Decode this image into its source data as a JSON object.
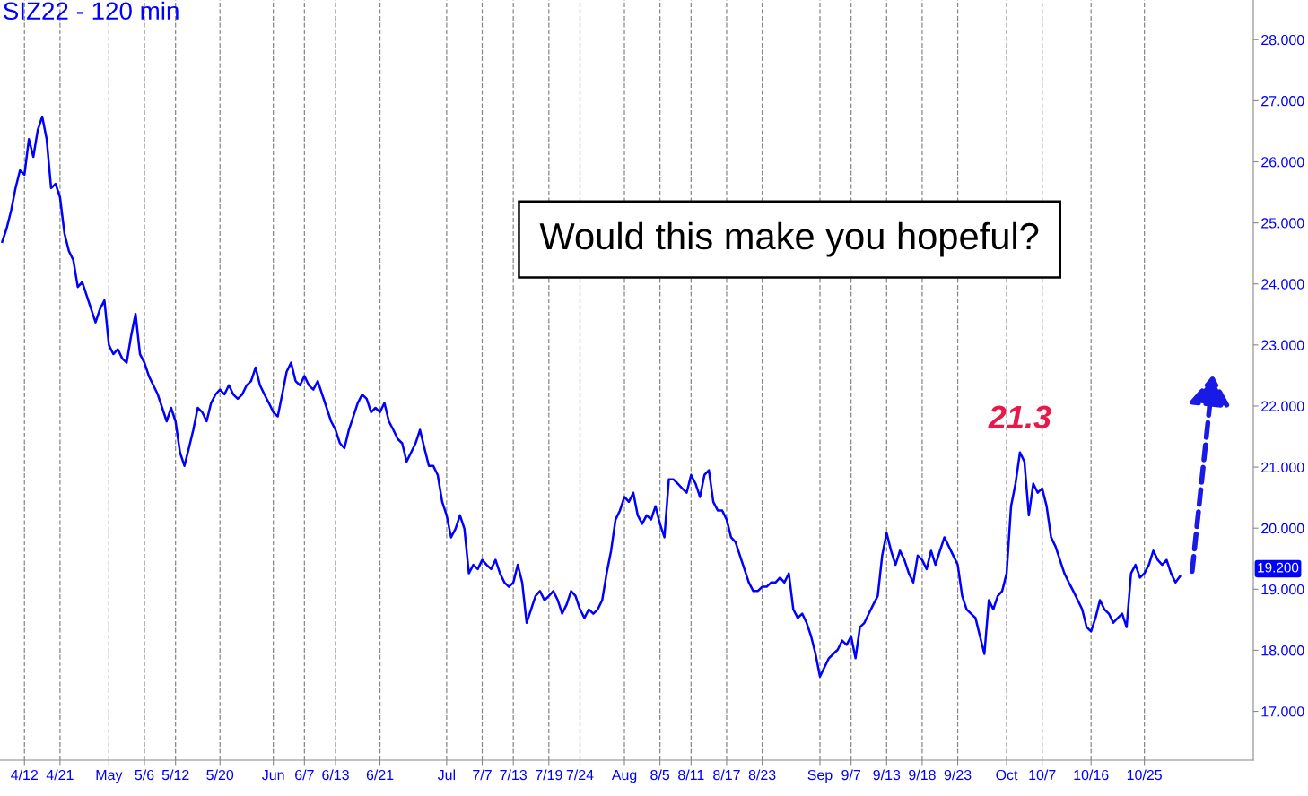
{
  "chart_data": {
    "type": "line",
    "title": "SIZ22 - 120 min",
    "categories": [
      null,
      null,
      null,
      null,
      null,
      "4/12",
      null,
      null,
      null,
      null,
      null,
      null,
      null,
      "4/21",
      null,
      null,
      null,
      null,
      null,
      null,
      null,
      null,
      null,
      null,
      "May",
      null,
      null,
      null,
      null,
      null,
      null,
      null,
      "5/6",
      null,
      null,
      null,
      null,
      null,
      null,
      "5/12",
      null,
      null,
      null,
      null,
      null,
      null,
      null,
      null,
      null,
      "5/20",
      null,
      null,
      null,
      null,
      null,
      null,
      null,
      null,
      null,
      null,
      null,
      "Jun",
      null,
      null,
      null,
      null,
      null,
      null,
      "6/7",
      null,
      null,
      null,
      null,
      null,
      null,
      "6/13",
      null,
      null,
      null,
      null,
      null,
      null,
      null,
      null,
      null,
      "6/21",
      null,
      null,
      null,
      null,
      null,
      null,
      null,
      null,
      null,
      null,
      null,
      null,
      null,
      null,
      "Jul",
      null,
      null,
      null,
      null,
      null,
      null,
      null,
      "7/7",
      null,
      null,
      null,
      null,
      null,
      null,
      "7/13",
      null,
      null,
      null,
      null,
      null,
      null,
      null,
      "7/19",
      null,
      null,
      null,
      null,
      null,
      null,
      "7/24",
      null,
      null,
      null,
      null,
      null,
      null,
      null,
      null,
      null,
      "Aug",
      null,
      null,
      null,
      null,
      null,
      null,
      null,
      "8/5",
      null,
      null,
      null,
      null,
      null,
      null,
      "8/11",
      null,
      null,
      null,
      null,
      null,
      null,
      null,
      "8/17",
      null,
      null,
      null,
      null,
      null,
      null,
      null,
      "8/23",
      null,
      null,
      null,
      null,
      null,
      null,
      null,
      null,
      null,
      null,
      null,
      null,
      "Sep",
      null,
      null,
      null,
      null,
      null,
      null,
      "9/7",
      null,
      null,
      null,
      null,
      null,
      null,
      null,
      "9/13",
      null,
      null,
      null,
      null,
      null,
      null,
      null,
      "9/18",
      null,
      null,
      null,
      null,
      null,
      null,
      null,
      "9/23",
      null,
      null,
      null,
      null,
      null,
      null,
      null,
      null,
      null,
      null,
      "Oct",
      null,
      null,
      null,
      null,
      null,
      null,
      null,
      "10/7",
      null,
      null,
      null,
      null,
      null,
      null,
      null,
      null,
      null,
      null,
      "10/16",
      null,
      null,
      null,
      null,
      null,
      null,
      null,
      null,
      null,
      null,
      null,
      "10/25",
      null,
      null,
      null,
      null,
      null,
      null,
      null,
      null
    ],
    "series": [
      {
        "color": "#0000ff",
        "values": [
          24.69,
          24.91,
          25.2,
          25.57,
          25.86,
          25.79,
          26.37,
          26.08,
          26.52,
          26.74,
          26.37,
          25.57,
          25.64,
          25.42,
          24.83,
          24.54,
          24.39,
          23.95,
          24.03,
          23.81,
          23.59,
          23.37,
          23.59,
          23.73,
          23.0,
          22.85,
          22.93,
          22.78,
          22.71,
          23.15,
          23.51,
          22.85,
          22.71,
          22.49,
          22.34,
          22.19,
          21.97,
          21.75,
          21.97,
          21.75,
          21.24,
          21.02,
          21.31,
          21.61,
          21.97,
          21.9,
          21.75,
          22.05,
          22.19,
          22.27,
          22.19,
          22.34,
          22.19,
          22.12,
          22.19,
          22.34,
          22.41,
          22.63,
          22.34,
          22.19,
          22.05,
          21.9,
          21.83,
          22.19,
          22.56,
          22.71,
          22.41,
          22.34,
          22.49,
          22.34,
          22.27,
          22.41,
          22.19,
          21.97,
          21.75,
          21.61,
          21.39,
          21.31,
          21.61,
          21.83,
          22.05,
          22.19,
          22.12,
          21.9,
          21.97,
          21.9,
          22.05,
          21.75,
          21.61,
          21.46,
          21.39,
          21.09,
          21.24,
          21.39,
          21.61,
          21.31,
          21.02,
          21.02,
          20.87,
          20.43,
          20.21,
          19.85,
          19.99,
          20.21,
          19.99,
          19.26,
          19.4,
          19.33,
          19.48,
          19.4,
          19.33,
          19.48,
          19.26,
          19.11,
          19.04,
          19.11,
          19.4,
          19.11,
          18.45,
          18.67,
          18.89,
          18.97,
          18.82,
          18.89,
          18.97,
          18.82,
          18.6,
          18.75,
          18.97,
          18.89,
          18.67,
          18.53,
          18.67,
          18.6,
          18.67,
          18.82,
          19.26,
          19.63,
          20.14,
          20.29,
          20.51,
          20.43,
          20.58,
          20.21,
          20.07,
          20.21,
          20.14,
          20.36,
          20.07,
          19.85,
          20.8,
          20.8,
          20.73,
          20.65,
          20.58,
          20.87,
          20.73,
          20.51,
          20.87,
          20.95,
          20.43,
          20.29,
          20.29,
          20.14,
          19.85,
          19.77,
          19.55,
          19.33,
          19.11,
          18.97,
          18.97,
          19.04,
          19.04,
          19.11,
          19.11,
          19.19,
          19.11,
          19.26,
          18.67,
          18.53,
          18.6,
          18.45,
          18.23,
          17.94,
          17.57,
          17.72,
          17.87,
          17.94,
          18.01,
          18.16,
          18.09,
          18.23,
          17.87,
          18.38,
          18.45,
          18.6,
          18.75,
          18.89,
          19.55,
          19.92,
          19.63,
          19.4,
          19.63,
          19.48,
          19.26,
          19.11,
          19.55,
          19.48,
          19.33,
          19.63,
          19.4,
          19.63,
          19.85,
          19.7,
          19.55,
          19.4,
          18.89,
          18.67,
          18.6,
          18.53,
          18.23,
          17.94,
          18.82,
          18.67,
          18.89,
          18.97,
          19.26,
          20.36,
          20.73,
          21.24,
          21.09,
          20.21,
          20.73,
          20.58,
          20.65,
          20.36,
          19.85,
          19.7,
          19.48,
          19.26,
          19.11,
          18.97,
          18.82,
          18.67,
          18.38,
          18.31,
          18.53,
          18.82,
          18.67,
          18.6,
          18.45,
          18.53,
          18.6,
          18.38,
          19.26,
          19.4,
          19.19,
          19.26,
          19.4,
          19.63,
          19.48,
          19.4,
          19.48,
          19.26,
          19.11,
          19.21
        ]
      }
    ],
    "ylim": [
      16.2,
      28.65
    ],
    "yticks": [
      {
        "value": 17,
        "label": "17.000"
      },
      {
        "value": 18,
        "label": "18.000"
      },
      {
        "value": 19,
        "label": "19.000"
      },
      {
        "value": 20,
        "label": "20.000"
      },
      {
        "value": 21,
        "label": "21.000"
      },
      {
        "value": 22,
        "label": "22.000"
      },
      {
        "value": 23,
        "label": "23.000"
      },
      {
        "value": 24,
        "label": "24.000"
      },
      {
        "value": 25,
        "label": "25.000"
      },
      {
        "value": 26,
        "label": "26.000"
      },
      {
        "value": 27,
        "label": "27.000"
      },
      {
        "value": 28,
        "label": "28.000"
      }
    ],
    "grid": "x",
    "line_style": "solid",
    "annotations": [
      "Would this make you hopeful?",
      "21.3",
      "19.200"
    ]
  }
}
